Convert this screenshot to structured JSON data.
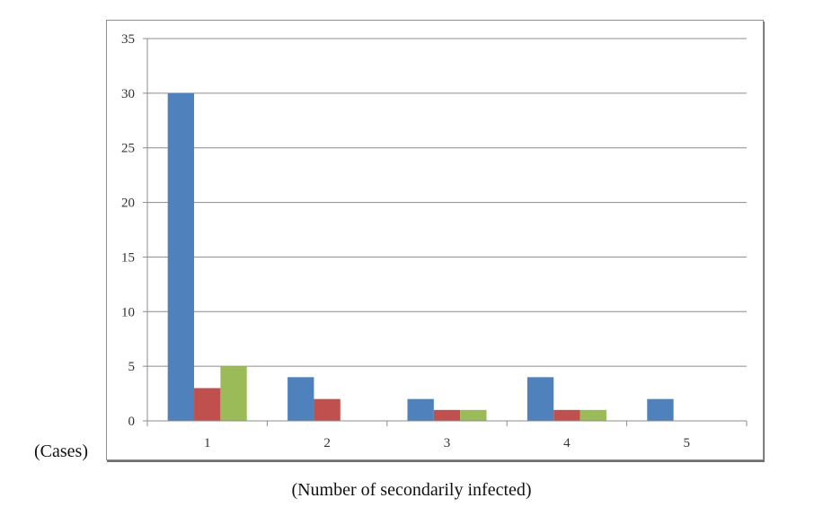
{
  "chart_data": {
    "type": "bar",
    "title": "",
    "xlabel": "(Number of secondarily infected)",
    "ylabel": "(Cases)",
    "categories": [
      "1",
      "2",
      "3",
      "4",
      "5"
    ],
    "series": [
      {
        "values": [
          30,
          4,
          2,
          4,
          2
        ],
        "color": "#4f81bd"
      },
      {
        "values": [
          3,
          2,
          1,
          1,
          0
        ],
        "color": "#c0504d"
      },
      {
        "values": [
          5,
          0,
          1,
          1,
          0
        ],
        "color": "#9bbb59"
      }
    ],
    "ylim": [
      0,
      35
    ],
    "yticks": [
      0,
      5,
      10,
      15,
      20,
      25,
      30,
      35
    ],
    "grid": true,
    "legend": "none"
  }
}
